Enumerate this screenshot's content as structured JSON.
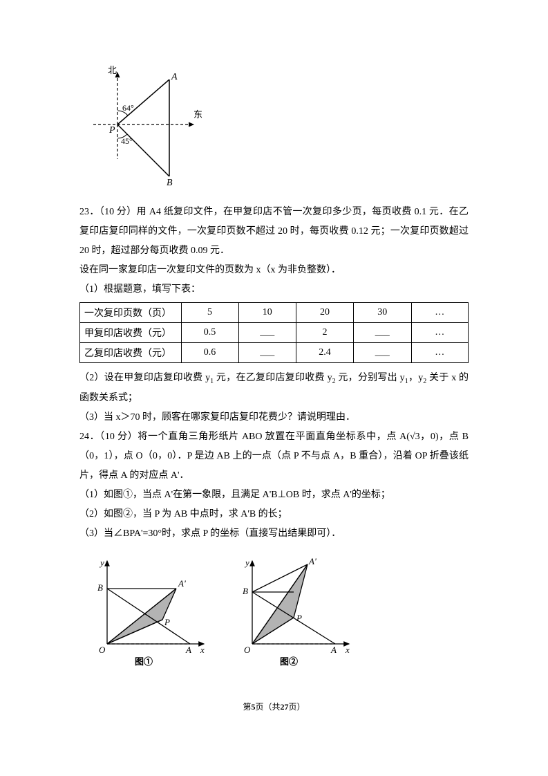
{
  "fig_top": {
    "north": "北",
    "east": "东",
    "A": "A",
    "B": "B",
    "P": "P",
    "ang1": "64°",
    "ang2": "45°"
  },
  "q23": {
    "head": "23．（10 分）用 A4 纸复印文件，在甲复印店不管一次复印多少页，每页收费 0.1 元．在乙复印店复印同样的文件，一次复印页数不超过 20 时，每页收费 0.12 元；一次复印页数超过 20 时，超过部分每页收费 0.09 元．",
    "line2": "设在同一家复印店一次复印文件的页数为 x（x 为非负整数）．",
    "sub1": "（1）根据题意，填写下表：",
    "table": {
      "widths": [
        150,
        70,
        70,
        70,
        70,
        70
      ],
      "rows": [
        [
          "一次复印页数（页）",
          "5",
          "10",
          "20",
          "30",
          "…"
        ],
        [
          "甲复印店收费（元）",
          "0.5",
          "___",
          "2",
          "___",
          "…"
        ],
        [
          "乙复印店收费（元）",
          "0.6",
          "___",
          "2.4",
          "___",
          "…"
        ]
      ]
    },
    "sub2a": "（2）设在甲复印店复印收费 y",
    "sub2b": " 元，在乙复印店复印收费 y",
    "sub2c": " 元，分别写出 y",
    "sub2d": "，y",
    "sub2e": "关于 x 的函数关系式；",
    "s1": "1",
    "s2": "2",
    "sub3": "（3）当 x＞70 时，顾客在哪家复印店复印花费少？请说明理由．"
  },
  "q24": {
    "head_a": "24．（10 分）将一个直角三角形纸片 ABO 放置在平面直角坐标系中，点 ",
    "head_b": "，点 B（0，1），点 O（0，0）．P 是边 AB 上的一点（点 P 不与点 A，B 重合），沿着 OP 折叠该纸片，得点 A 的对应点 A'．",
    "point_A": "A(√3，0)",
    "sub1": "（1）如图①，当点 A'在第一象限，且满足 A'B⊥OB 时，求点 A'的坐标；",
    "sub2": "（2）如图②，当 P 为 AB 中点时，求 A'B 的长；",
    "sub3": "（3）当∠BPA'=30°时，求点 P 的坐标（直接写出结果即可）．"
  },
  "fig_bottom": {
    "y": "y",
    "x": "x",
    "O": "O",
    "A": "A",
    "B": "B",
    "P": "P",
    "Ap": "A'",
    "cap1": "图①",
    "cap2": "图②"
  },
  "footer": {
    "a": "第",
    "page": "5",
    "b": "页（共",
    "total": "27",
    "c": "页）"
  },
  "colors": {
    "fill": "#b3b3b3",
    "line": "#000000",
    "bg": "#ffffff"
  }
}
